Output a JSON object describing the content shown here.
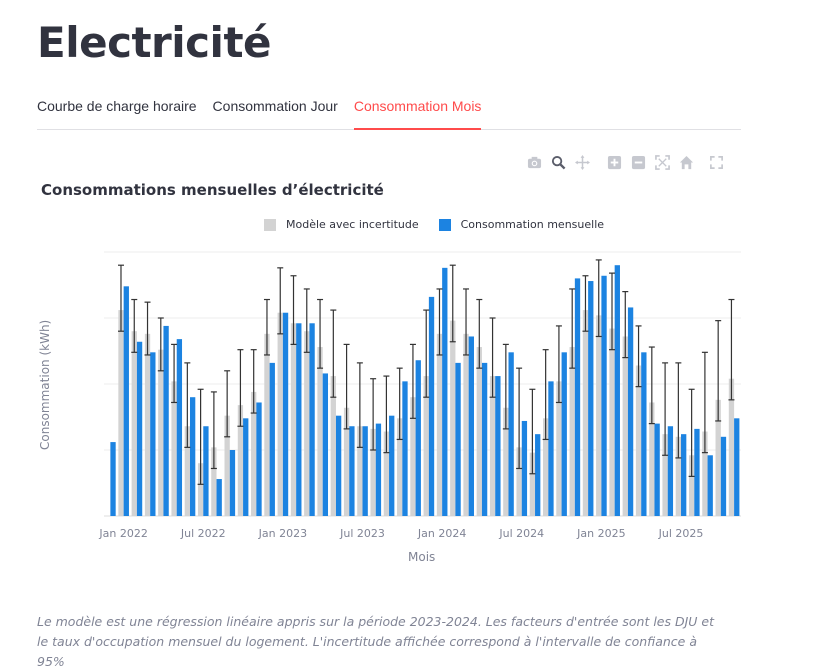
{
  "page": {
    "title": "Electricité"
  },
  "tabs": [
    {
      "label": "Courbe de charge horaire",
      "active": false
    },
    {
      "label": "Consommation Jour",
      "active": false
    },
    {
      "label": "Consommation Mois",
      "active": true
    }
  ],
  "modebar": [
    "camera-icon",
    "zoom-icon",
    "pan-icon",
    "zoom-in-icon",
    "zoom-out-icon",
    "autoscale-icon",
    "reset-axes-icon",
    "fullscreen-icon"
  ],
  "colors": {
    "accent": "#ff4b4b",
    "model": "#d3d3d3",
    "consumption": "#1c83e1",
    "error_bar": "#333333",
    "grid": "#eeeeee"
  },
  "chart_data": {
    "type": "bar",
    "title": "Consommations mensuelles d’électricité",
    "xlabel": "Mois",
    "ylabel": "Consommation (kWh)",
    "ylim": [
      0,
      1.0
    ],
    "grid": true,
    "legend_placement": "top-center",
    "categories": [
      "2021-12",
      "2022-01",
      "2022-02",
      "2022-03",
      "2022-04",
      "2022-05",
      "2022-06",
      "2022-07",
      "2022-08",
      "2022-09",
      "2022-10",
      "2022-11",
      "2022-12",
      "2023-01",
      "2023-02",
      "2023-03",
      "2023-04",
      "2023-05",
      "2023-06",
      "2023-07",
      "2023-08",
      "2023-09",
      "2023-10",
      "2023-11",
      "2023-12",
      "2024-01",
      "2024-02",
      "2024-03",
      "2024-04",
      "2024-05",
      "2024-06",
      "2024-07",
      "2024-08",
      "2024-09",
      "2024-10",
      "2024-11",
      "2024-12",
      "2025-01",
      "2025-02",
      "2025-03",
      "2025-04",
      "2025-05",
      "2025-06",
      "2025-07",
      "2025-08",
      "2025-09",
      "2025-10",
      "2025-11"
    ],
    "x_ticks": [
      {
        "at": "2022-01",
        "label": "Jan 2022"
      },
      {
        "at": "2022-07",
        "label": "Jul 2022"
      },
      {
        "at": "2023-01",
        "label": "Jan 2023"
      },
      {
        "at": "2023-07",
        "label": "Jul 2023"
      },
      {
        "at": "2024-01",
        "label": "Jan 2024"
      },
      {
        "at": "2024-07",
        "label": "Jul 2024"
      },
      {
        "at": "2025-01",
        "label": "Jan 2025"
      },
      {
        "at": "2025-07",
        "label": "Jul 2025"
      }
    ],
    "series": [
      {
        "name": "Modèle avec incertitude",
        "type": "bar_with_error",
        "values": [
          null,
          0.78,
          0.7,
          0.69,
          0.63,
          0.51,
          0.34,
          0.2,
          0.26,
          0.38,
          0.42,
          0.47,
          0.69,
          0.77,
          0.73,
          0.7,
          0.64,
          0.53,
          0.41,
          0.34,
          0.33,
          0.32,
          0.37,
          0.45,
          0.53,
          0.69,
          0.74,
          0.69,
          0.64,
          0.53,
          0.41,
          0.26,
          0.24,
          0.37,
          0.51,
          0.64,
          0.78,
          0.76,
          0.71,
          0.68,
          0.57,
          0.43,
          0.31,
          0.3,
          0.23,
          0.32,
          0.44,
          0.52
        ],
        "err_low": [
          null,
          0.7,
          0.62,
          0.61,
          0.55,
          0.43,
          0.26,
          0.12,
          0.18,
          0.3,
          0.34,
          0.39,
          0.61,
          0.69,
          0.65,
          0.62,
          0.56,
          0.45,
          0.33,
          0.26,
          0.25,
          0.24,
          0.29,
          0.37,
          0.45,
          0.61,
          0.66,
          0.61,
          0.56,
          0.45,
          0.33,
          0.18,
          0.16,
          0.29,
          0.43,
          0.56,
          0.7,
          0.68,
          0.63,
          0.6,
          0.49,
          0.35,
          0.23,
          0.22,
          0.15,
          0.24,
          0.36,
          0.44
        ],
        "err_high": [
          null,
          0.95,
          0.82,
          0.81,
          0.75,
          0.65,
          0.58,
          0.48,
          0.47,
          0.55,
          0.63,
          0.63,
          0.82,
          0.94,
          0.91,
          0.86,
          0.82,
          0.78,
          0.65,
          0.58,
          0.52,
          0.53,
          0.56,
          0.65,
          0.78,
          0.86,
          0.95,
          0.86,
          0.82,
          0.75,
          0.65,
          0.56,
          0.48,
          0.63,
          0.72,
          0.86,
          0.91,
          0.97,
          0.92,
          0.85,
          0.72,
          0.64,
          0.58,
          0.58,
          0.48,
          0.62,
          0.74,
          0.82
        ]
      },
      {
        "name": "Consommation mensuelle",
        "type": "bar",
        "values": [
          0.28,
          0.87,
          0.66,
          0.62,
          0.72,
          0.67,
          0.45,
          0.34,
          0.14,
          0.25,
          0.37,
          0.43,
          0.58,
          0.77,
          0.73,
          0.73,
          0.54,
          0.38,
          0.34,
          0.34,
          0.35,
          0.38,
          0.51,
          0.59,
          0.83,
          0.94,
          0.58,
          0.68,
          0.58,
          0.53,
          0.62,
          0.36,
          0.31,
          0.51,
          0.62,
          0.9,
          0.89,
          0.91,
          0.95,
          0.79,
          0.62,
          0.35,
          0.34,
          0.31,
          0.33,
          0.23,
          0.3,
          0.37
        ]
      }
    ]
  },
  "caption": "Le modèle est une régression linéaire appris sur la période 2023-2024. Les facteurs d'entrée sont les DJU et le taux d'occupation mensuel du logement. L'incertitude affichée correspond à l'intervalle de confiance à 95%"
}
